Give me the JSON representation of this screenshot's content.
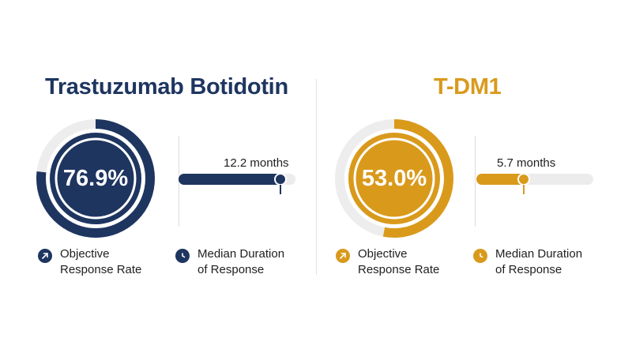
{
  "chart_data": [
    {
      "type": "donut",
      "title": "Trastuzumab Botidotin",
      "metric": "Objective Response Rate",
      "value": 76.9,
      "value_label": "76.9%",
      "color": "#1e3560"
    },
    {
      "type": "bar",
      "title": "Trastuzumab Botidotin",
      "metric": "Median Duration of Response",
      "value": 12.2,
      "value_label": "12.2 months",
      "color": "#1e3560"
    },
    {
      "type": "donut",
      "title": "T-DM1",
      "metric": "Objective Response Rate",
      "value": 53.0,
      "value_label": "53.0%",
      "color": "#d99a1c"
    },
    {
      "type": "bar",
      "title": "T-DM1",
      "metric": "Median Duration of Response",
      "value": 5.7,
      "value_label": "5.7 months",
      "color": "#d99a1c"
    }
  ],
  "left": {
    "title": "Trastuzumab Botidotin",
    "orr_label": "76.9%",
    "dor_label": "12.2 months",
    "legend_orr_line1": "Objective",
    "legend_orr_line2": "Response Rate",
    "legend_dor_line1": "Median Duration",
    "legend_dor_line2": "of Response"
  },
  "right": {
    "title": "T-DM1",
    "orr_label": "53.0%",
    "dor_label": "5.7 months",
    "legend_orr_line1": "Objective",
    "legend_orr_line2": "Response Rate",
    "legend_dor_line1": "Median Duration",
    "legend_dor_line2": "of Response"
  },
  "icons": {
    "orr": "arrow-up-right-icon",
    "dor": "clock-icon"
  },
  "colors": {
    "navy": "#1e3560",
    "gold": "#d99a1c",
    "track": "#ececec"
  }
}
